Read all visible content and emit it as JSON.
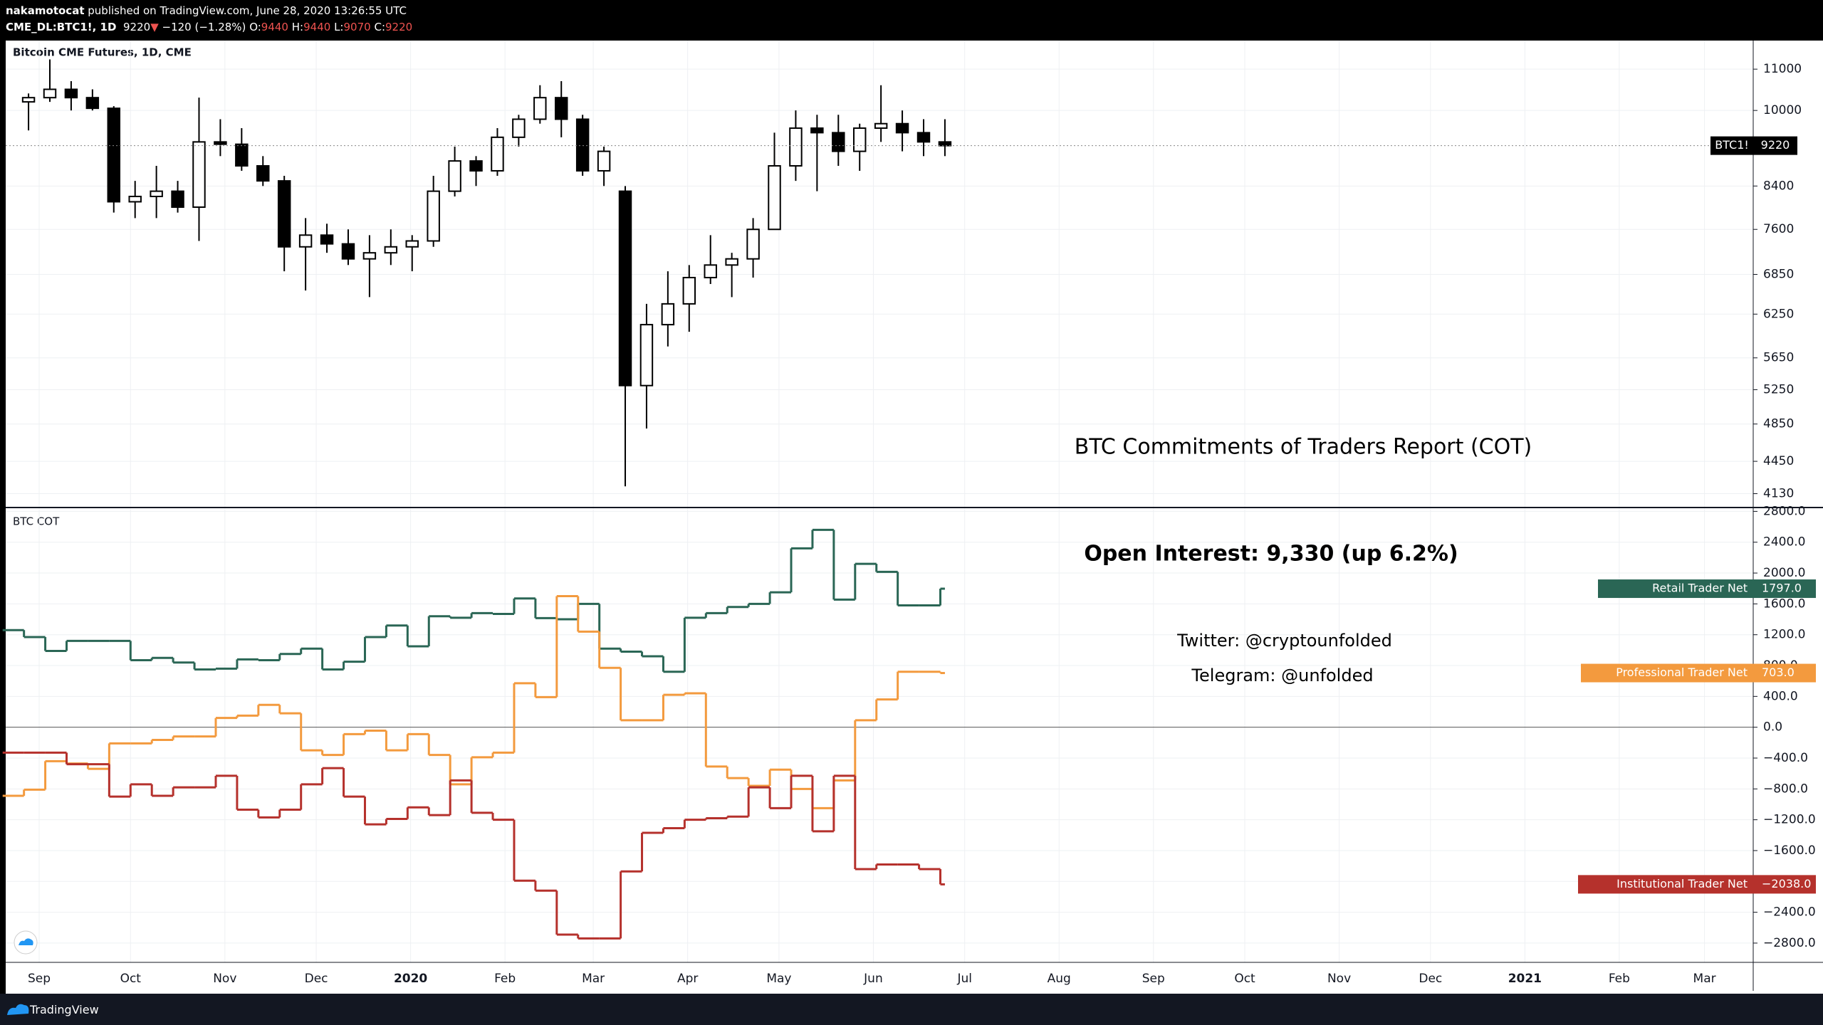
{
  "header": {
    "author": "nakamotocat",
    "published": "published on TradingView.com, June 28, 2020 13:26:55 UTC",
    "symbol": "CME_DL:BTC1!, 1D",
    "last": "9220",
    "arrow": "▼",
    "change": "−120 (−1.28%)",
    "ohlc": [
      {
        "label": "O:",
        "value": "9440"
      },
      {
        "label": "H:",
        "value": "9440"
      },
      {
        "label": "L:",
        "value": "9070"
      },
      {
        "label": "C:",
        "value": "9220"
      }
    ]
  },
  "footer": {
    "brand": "TradingView"
  },
  "chart_data": [
    {
      "type": "candlestick",
      "title": "Bitcoin CME Futures, 1D, CME",
      "symbol": "BTC1!",
      "log_scale": true,
      "grid": true,
      "xlim": [
        "2019-08-21",
        "2021-03-17"
      ],
      "x": [
        "2019-08-26",
        "2019-09-02",
        "2019-09-09",
        "2019-09-16",
        "2019-09-23",
        "2019-09-30",
        "2019-10-07",
        "2019-10-14",
        "2019-10-21",
        "2019-10-28",
        "2019-11-04",
        "2019-11-11",
        "2019-11-18",
        "2019-11-25",
        "2019-12-02",
        "2019-12-09",
        "2019-12-16",
        "2019-12-23",
        "2019-12-30",
        "2020-01-06",
        "2020-01-13",
        "2020-01-20",
        "2020-01-27",
        "2020-02-03",
        "2020-02-10",
        "2020-02-17",
        "2020-02-24",
        "2020-03-02",
        "2020-03-09",
        "2020-03-16",
        "2020-03-23",
        "2020-03-30",
        "2020-04-06",
        "2020-04-13",
        "2020-04-20",
        "2020-04-27",
        "2020-05-04",
        "2020-05-11",
        "2020-05-18",
        "2020-05-25",
        "2020-06-01",
        "2020-06-08",
        "2020-06-15",
        "2020-06-22"
      ],
      "open": [
        10200,
        10300,
        10500,
        10300,
        10050,
        8100,
        8200,
        8300,
        8000,
        9300,
        9250,
        8800,
        8500,
        7300,
        7500,
        7350,
        7100,
        7200,
        7300,
        7400,
        8300,
        8900,
        8700,
        9400,
        9800,
        10300,
        9800,
        8700,
        8300,
        5300,
        6100,
        6400,
        6800,
        7000,
        7100,
        7600,
        8800,
        9600,
        9500,
        9100,
        9600,
        9700,
        9500,
        9300
      ],
      "high": [
        10400,
        11250,
        10700,
        10500,
        10100,
        8500,
        8800,
        8500,
        10300,
        9800,
        9600,
        9000,
        8600,
        7800,
        7700,
        7600,
        7500,
        7600,
        7500,
        8600,
        9200,
        9000,
        9600,
        9900,
        10600,
        10700,
        9900,
        9200,
        8400,
        6400,
        6900,
        7000,
        7500,
        7200,
        7800,
        9500,
        10000,
        9900,
        9900,
        9700,
        10600,
        10000,
        9800,
        9800
      ],
      "low": [
        9550,
        10200,
        10000,
        10000,
        7900,
        7800,
        7800,
        7900,
        7400,
        9000,
        8700,
        8400,
        6900,
        6600,
        7200,
        7000,
        6500,
        7000,
        6900,
        7300,
        8200,
        8400,
        8600,
        9200,
        9700,
        9400,
        8600,
        8400,
        4200,
        4800,
        5800,
        6000,
        6700,
        6500,
        6800,
        7600,
        8500,
        8300,
        8800,
        8700,
        9300,
        9100,
        9000,
        9000
      ],
      "close": [
        10300,
        10500,
        10300,
        10050,
        8100,
        8200,
        8300,
        8000,
        9300,
        9250,
        8800,
        8500,
        7300,
        7500,
        7350,
        7100,
        7200,
        7300,
        7400,
        8300,
        8900,
        8700,
        9400,
        9800,
        10300,
        9800,
        8700,
        9100,
        5300,
        6100,
        6400,
        6800,
        7000,
        7100,
        7600,
        8800,
        9600,
        9500,
        9100,
        9600,
        9700,
        9500,
        9300,
        9220
      ],
      "ylim": [
        4000,
        11750
      ],
      "yticks": [
        11000,
        10000,
        8400,
        7600,
        6850,
        6250,
        5650,
        5250,
        4850,
        4450,
        4130
      ],
      "annotations": [
        "BTC Commitments of Traders Report (COT)"
      ]
    },
    {
      "type": "line",
      "title": "BTC COT",
      "step": true,
      "grid": true,
      "xlim": [
        "2019-08-21",
        "2021-03-17"
      ],
      "xticks": [
        {
          "value": "2019-09",
          "label": "Sep"
        },
        {
          "value": "2019-10",
          "label": "Oct"
        },
        {
          "value": "2019-11",
          "label": "Nov"
        },
        {
          "value": "2019-12",
          "label": "Dec"
        },
        {
          "value": "2020-01",
          "label": "2020"
        },
        {
          "value": "2020-02",
          "label": "Feb"
        },
        {
          "value": "2020-03",
          "label": "Mar"
        },
        {
          "value": "2020-04",
          "label": "Apr"
        },
        {
          "value": "2020-05",
          "label": "May"
        },
        {
          "value": "2020-06",
          "label": "Jun"
        },
        {
          "value": "2020-07",
          "label": "Jul"
        },
        {
          "value": "2020-08",
          "label": "Aug"
        },
        {
          "value": "2020-09",
          "label": "Sep"
        },
        {
          "value": "2020-10",
          "label": "Oct"
        },
        {
          "value": "2020-11",
          "label": "Nov"
        },
        {
          "value": "2020-12",
          "label": "Dec"
        },
        {
          "value": "2021-01",
          "label": "2021"
        },
        {
          "value": "2021-02",
          "label": "Feb"
        },
        {
          "value": "2021-03",
          "label": "Mar"
        }
      ],
      "x": [
        "2019-08-20",
        "2019-08-27",
        "2019-09-03",
        "2019-09-10",
        "2019-09-17",
        "2019-09-24",
        "2019-10-01",
        "2019-10-08",
        "2019-10-15",
        "2019-10-22",
        "2019-10-29",
        "2019-11-05",
        "2019-11-12",
        "2019-11-19",
        "2019-11-26",
        "2019-12-03",
        "2019-12-10",
        "2019-12-17",
        "2019-12-24",
        "2019-12-31",
        "2020-01-07",
        "2020-01-14",
        "2020-01-21",
        "2020-01-28",
        "2020-02-04",
        "2020-02-11",
        "2020-02-18",
        "2020-02-25",
        "2020-03-03",
        "2020-03-10",
        "2020-03-17",
        "2020-03-24",
        "2020-03-31",
        "2020-04-07",
        "2020-04-14",
        "2020-04-21",
        "2020-04-28",
        "2020-05-05",
        "2020-05-12",
        "2020-05-19",
        "2020-05-26",
        "2020-06-02",
        "2020-06-09",
        "2020-06-16",
        "2020-06-23"
      ],
      "series": [
        {
          "name": "Retail Trader Net",
          "color": "#2a6655",
          "values": [
            1260,
            1170,
            990,
            1120,
            1120,
            1120,
            870,
            900,
            840,
            750,
            760,
            880,
            870,
            950,
            1020,
            750,
            850,
            1170,
            1320,
            1050,
            1440,
            1420,
            1480,
            1470,
            1670,
            1415,
            1400,
            1600,
            1020,
            980,
            920,
            720,
            1420,
            1480,
            1560,
            1600,
            1750,
            2320,
            2560,
            1655,
            2120,
            2015,
            1580,
            1580,
            1797
          ],
          "value_labels": [
            null,
            null,
            null,
            null,
            null,
            null,
            null,
            null,
            null,
            null,
            null,
            null,
            null,
            null,
            null,
            null,
            null,
            null,
            null,
            null,
            null,
            null,
            null,
            null,
            null,
            null,
            null,
            null,
            null,
            null,
            null,
            null,
            null,
            null,
            null,
            null,
            null,
            null,
            null,
            null,
            null,
            null,
            null,
            null,
            "1797.0"
          ]
        },
        {
          "name": "Professional Trader Net",
          "color": "#f39a3e",
          "values": [
            -890,
            -810,
            -440,
            -470,
            -540,
            -210,
            -210,
            -165,
            -120,
            -120,
            120,
            150,
            290,
            180,
            -300,
            -360,
            -90,
            -45,
            -300,
            -90,
            -360,
            -740,
            -390,
            -330,
            570,
            390,
            1700,
            1240,
            770,
            90,
            90,
            420,
            440,
            -510,
            -660,
            -760,
            -550,
            -800,
            -1050,
            -690,
            90,
            360,
            720,
            720,
            703
          ],
          "value_labels": [
            null,
            null,
            null,
            null,
            null,
            null,
            null,
            null,
            null,
            null,
            null,
            null,
            null,
            null,
            null,
            null,
            null,
            null,
            null,
            null,
            null,
            null,
            null,
            null,
            null,
            null,
            null,
            null,
            null,
            null,
            null,
            null,
            null,
            null,
            null,
            null,
            null,
            null,
            null,
            null,
            null,
            null,
            null,
            null,
            "703.0"
          ]
        },
        {
          "name": "Institutional Trader Net",
          "color": "#b5312c",
          "values": [
            -330,
            -330,
            -330,
            -480,
            -480,
            -900,
            -740,
            -890,
            -780,
            -780,
            -630,
            -1070,
            -1170,
            -1070,
            -740,
            -530,
            -900,
            -1260,
            -1190,
            -1040,
            -1140,
            -690,
            -1110,
            -1200,
            -1990,
            -2120,
            -2690,
            -2740,
            -2740,
            -1870,
            -1370,
            -1310,
            -1200,
            -1180,
            -1160,
            -780,
            -1050,
            -630,
            -1350,
            -630,
            -1840,
            -1780,
            -1780,
            -1840,
            -2038
          ],
          "value_labels": [
            null,
            null,
            null,
            null,
            null,
            null,
            null,
            null,
            null,
            null,
            null,
            null,
            null,
            null,
            null,
            null,
            null,
            null,
            null,
            null,
            null,
            null,
            null,
            null,
            null,
            null,
            null,
            null,
            null,
            null,
            null,
            null,
            null,
            null,
            null,
            null,
            null,
            null,
            null,
            null,
            null,
            null,
            null,
            null,
            "−2038.0"
          ]
        }
      ],
      "ylim": [
        -3050,
        2850
      ],
      "yticks": [
        {
          "value": 2800,
          "label": "2800.0"
        },
        {
          "value": 2400,
          "label": "2400.0"
        },
        {
          "value": 2000,
          "label": "2000.0"
        },
        {
          "value": 1600,
          "label": "1600.0"
        },
        {
          "value": 1200,
          "label": "1200.0"
        },
        {
          "value": 800,
          "label": "800.0"
        },
        {
          "value": 400,
          "label": "400.0"
        },
        {
          "value": 0,
          "label": "0.0"
        },
        {
          "value": -400,
          "label": "−400.0"
        },
        {
          "value": -800,
          "label": "−800.0"
        },
        {
          "value": -1200,
          "label": "−1200.0"
        },
        {
          "value": -1600,
          "label": "−1600.0"
        },
        {
          "value": -2000,
          "label": "−2000.0"
        },
        {
          "value": -2400,
          "label": "−2400.0"
        },
        {
          "value": -2800,
          "label": "−2800.0"
        }
      ],
      "annotations": [
        "Open Interest: 9,330 (up 6.2%)",
        "Twitter: @cryptounfolded",
        "Telegram: @unfolded"
      ]
    }
  ]
}
